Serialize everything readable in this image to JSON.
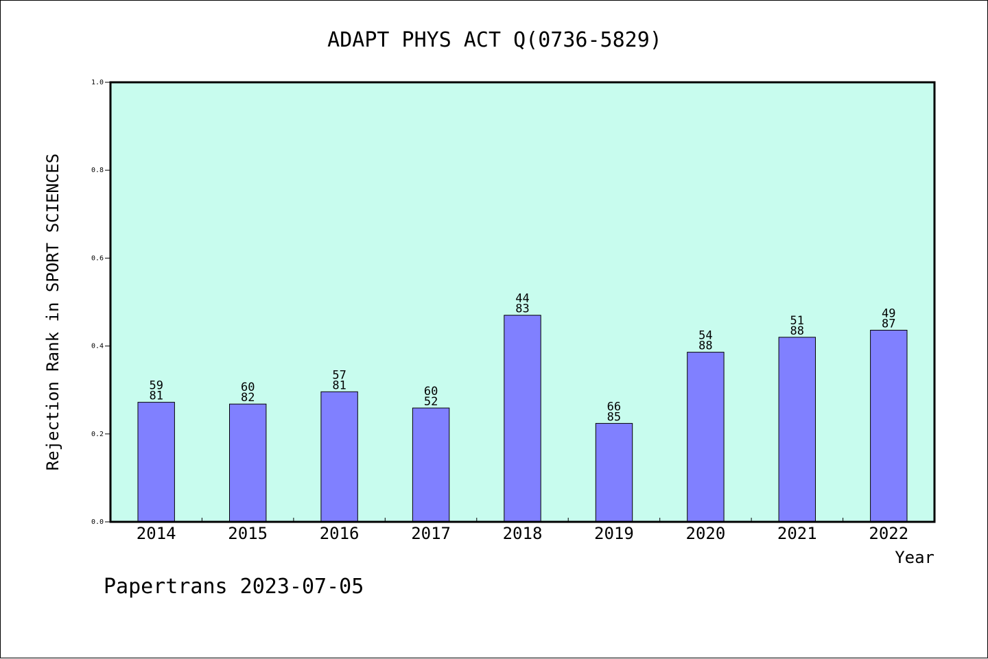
{
  "chart_data": {
    "type": "bar",
    "title": "ADAPT PHYS ACT Q(0736-5829)",
    "xlabel": "Year",
    "ylabel": "Rejection Rank in SPORT SCIENCES",
    "ylim": [
      0,
      1.0
    ],
    "yticks": [
      "0.0",
      "0.2",
      "0.4",
      "0.6",
      "0.8",
      "1.0"
    ],
    "categories": [
      "2014",
      "2015",
      "2016",
      "2017",
      "2018",
      "2019",
      "2020",
      "2021",
      "2022"
    ],
    "values": [
      0.272,
      0.268,
      0.296,
      0.259,
      0.47,
      0.224,
      0.386,
      0.42,
      0.436
    ],
    "labels_top": [
      "59",
      "60",
      "57",
      "60",
      "44",
      "66",
      "54",
      "51",
      "49"
    ],
    "labels_bottom": [
      "81",
      "82",
      "81",
      "52",
      "83",
      "85",
      "88",
      "88",
      "87"
    ],
    "plot_background": "#c8fcee",
    "bar_color": "#8080ff",
    "grid": false,
    "legend": "none"
  },
  "footer": {
    "credit": "Papertrans 2023-07-05"
  }
}
